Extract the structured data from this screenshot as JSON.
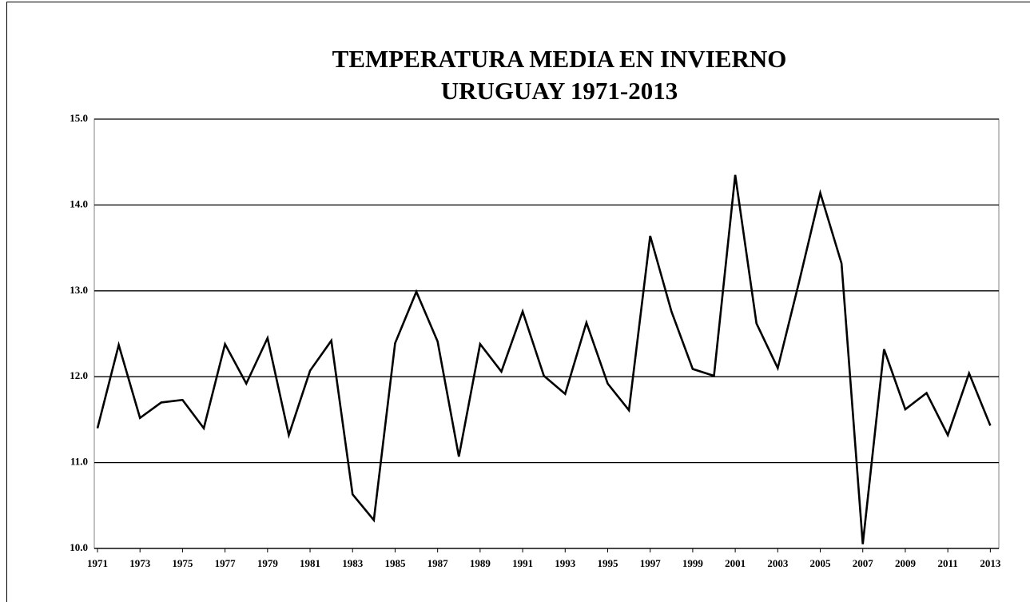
{
  "chart_data": {
    "type": "line",
    "title": "TEMPERATURA MEDIA EN INVIERNO",
    "subtitle": "URUGUAY 1971-2013",
    "x": [
      1971,
      1972,
      1973,
      1974,
      1975,
      1976,
      1977,
      1978,
      1979,
      1980,
      1981,
      1982,
      1983,
      1984,
      1985,
      1986,
      1987,
      1988,
      1989,
      1990,
      1991,
      1992,
      1993,
      1994,
      1995,
      1996,
      1997,
      1998,
      1999,
      2000,
      2001,
      2002,
      2003,
      2004,
      2005,
      2006,
      2007,
      2008,
      2009,
      2010,
      2011,
      2012,
      2013
    ],
    "values": [
      11.4,
      12.37,
      11.52,
      11.7,
      11.73,
      11.4,
      12.38,
      11.92,
      12.45,
      11.32,
      12.07,
      12.42,
      10.63,
      10.33,
      12.39,
      12.99,
      12.41,
      11.07,
      12.38,
      12.06,
      12.76,
      12.01,
      11.8,
      12.63,
      11.92,
      11.61,
      13.64,
      12.76,
      12.09,
      12.01,
      14.35,
      12.62,
      12.1,
      13.1,
      14.14,
      13.32,
      10.05,
      12.32,
      11.62,
      11.81,
      11.32,
      12.04,
      11.43
    ],
    "color": "#000000",
    "xlim": [
      1970.85,
      2013.4
    ],
    "xticks": [
      1971,
      1973,
      1975,
      1977,
      1979,
      1981,
      1983,
      1985,
      1987,
      1989,
      1991,
      1993,
      1995,
      1997,
      1999,
      2001,
      2003,
      2005,
      2007,
      2009,
      2011,
      2013
    ],
    "ylim": [
      10,
      15
    ],
    "yticks": [
      {
        "value": 10,
        "label": "10.0"
      },
      {
        "value": 11,
        "label": "11.0"
      },
      {
        "value": 12,
        "label": "12.0"
      },
      {
        "value": 13,
        "label": "13.0"
      },
      {
        "value": 14,
        "label": "14.0"
      },
      {
        "value": 15,
        "label": "15.0"
      }
    ],
    "grid": true
  }
}
